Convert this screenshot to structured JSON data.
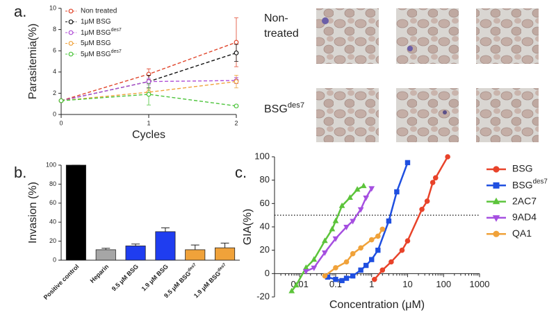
{
  "chart_data": [
    {
      "type": "line",
      "panel_label": "a.",
      "xlabel": "Cycles",
      "ylabel": "Parasitemia(%)",
      "x": [
        0,
        1,
        2
      ],
      "xlim": [
        0,
        2
      ],
      "xticks": [
        0,
        1,
        2
      ],
      "ylim": [
        0,
        10
      ],
      "yticks": [
        0,
        2,
        4,
        6,
        8,
        10
      ],
      "dashed": true,
      "open_markers": true,
      "legend": "upper left",
      "series": [
        {
          "name": "Non treated",
          "color": "#e0452b",
          "marker": "circle",
          "values": [
            1.3,
            3.8,
            6.8
          ],
          "errors": [
            0.1,
            0.5,
            2.3
          ]
        },
        {
          "name": "1μM BSG",
          "color": "#111111",
          "marker": "circle",
          "values": [
            1.3,
            3.1,
            5.8
          ],
          "errors": [
            0.1,
            0.6,
            0.8
          ]
        },
        {
          "name": "1μM BSGdes7",
          "color": "#b04fd6",
          "marker": "circle",
          "values": [
            1.3,
            3.1,
            3.2
          ],
          "errors": [
            0.1,
            0.3,
            0.3
          ]
        },
        {
          "name": "5μM BSG",
          "color": "#f0a23a",
          "marker": "circle",
          "values": [
            1.3,
            2.1,
            3.1
          ],
          "errors": [
            0.1,
            0.3,
            0.6
          ]
        },
        {
          "name": "5μM BSGdes7",
          "color": "#4cc43b",
          "marker": "circle",
          "values": [
            1.3,
            1.9,
            0.8
          ],
          "errors": [
            0.1,
            1.0,
            0.1
          ]
        }
      ]
    },
    {
      "type": "bar",
      "panel_label": "b.",
      "ylabel": "Invasion (%)",
      "categories": [
        "Positive control",
        "Heparin",
        "9.5 μM BSG",
        "1.9 μM BSG",
        "9.5 μM BSGdes7",
        "1.9 μM BSGdes7"
      ],
      "values": [
        100,
        11,
        15,
        30,
        11,
        13
      ],
      "errors": [
        0,
        1.5,
        2,
        4,
        5,
        5
      ],
      "colors": [
        "#000000",
        "#a6a6a6",
        "#1f3df0",
        "#1f3df0",
        "#f0a23a",
        "#f0a23a"
      ],
      "ylim": [
        0,
        100
      ],
      "yticks": [
        0,
        20,
        40,
        60,
        80,
        100
      ]
    },
    {
      "type": "line",
      "panel_label": "c.",
      "xlabel": "Concentration (μM)",
      "ylabel": "GIA(%)",
      "xscale": "log",
      "xlim": [
        0.002,
        1000
      ],
      "xticks": [
        0.01,
        0.1,
        1,
        10,
        100,
        1000
      ],
      "ylim": [
        -20,
        100
      ],
      "yticks": [
        -20,
        0,
        20,
        40,
        60,
        80,
        100
      ],
      "reference_line": 50,
      "legend": "right",
      "series": [
        {
          "name": "BSG",
          "color": "#e8432a",
          "marker": "circle",
          "x": [
            1.2,
            2,
            3.5,
            7,
            10,
            25,
            35,
            50,
            60,
            130
          ],
          "values": [
            -5,
            3,
            10,
            20,
            28,
            55,
            62,
            78,
            82,
            100
          ]
        },
        {
          "name": "BSGdes7",
          "color": "#1f4fe0",
          "marker": "square",
          "x": [
            0.06,
            0.1,
            0.15,
            0.2,
            0.3,
            0.5,
            0.7,
            1,
            1.5,
            3,
            5,
            10
          ],
          "values": [
            -3,
            -5,
            -6,
            -4,
            -2,
            3,
            7,
            12,
            20,
            45,
            70,
            95
          ]
        },
        {
          "name": "2AC7",
          "color": "#5cc43b",
          "marker": "triangle",
          "x": [
            0.006,
            0.008,
            0.015,
            0.025,
            0.05,
            0.08,
            0.1,
            0.15,
            0.25,
            0.4,
            0.6
          ],
          "values": [
            -15,
            -10,
            5,
            12,
            28,
            38,
            45,
            58,
            65,
            72,
            75
          ]
        },
        {
          "name": "9AD4",
          "color": "#a54fe0",
          "marker": "triangle-down",
          "x": [
            0.015,
            0.025,
            0.05,
            0.1,
            0.2,
            0.3,
            0.5,
            0.7,
            1
          ],
          "values": [
            2,
            5,
            18,
            30,
            40,
            45,
            55,
            65,
            73
          ]
        },
        {
          "name": "QA1",
          "color": "#f0a23a",
          "marker": "circle",
          "x": [
            0.05,
            0.1,
            0.2,
            0.3,
            0.5,
            1,
            1.5,
            2
          ],
          "values": [
            -2,
            5,
            10,
            17,
            22,
            29,
            32,
            38
          ]
        }
      ]
    }
  ],
  "images": {
    "row_labels": [
      "Non-treated",
      "BSGdes7"
    ]
  }
}
